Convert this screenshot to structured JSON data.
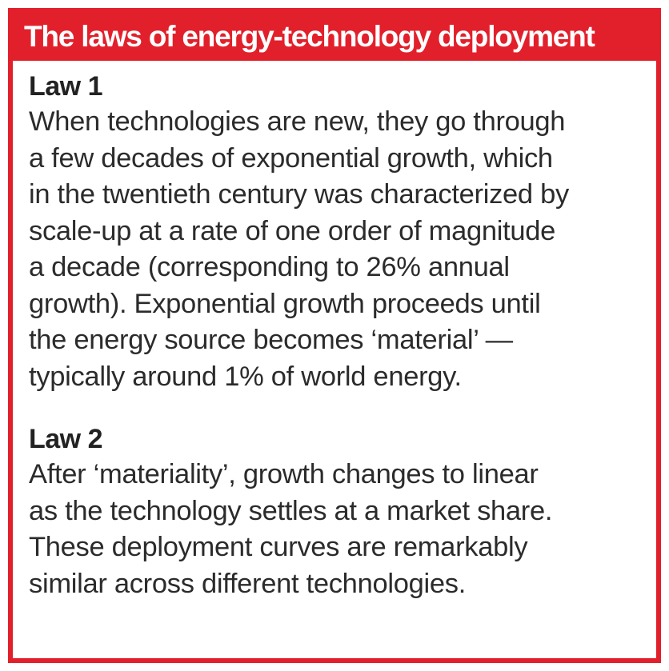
{
  "header": {
    "title": "The laws of energy-technology deployment"
  },
  "laws": [
    {
      "heading": "Law 1",
      "lines": [
        "When technologies are new, they go through",
        "a few decades of exponential growth, which",
        "in the twentieth century was characterized by",
        "scale-up at a rate of one order of magnitude",
        "a decade (corresponding to 26% annual",
        "growth). Exponential growth proceeds until",
        "the energy source becomes ‘material’ —",
        "typically around 1% of world energy."
      ]
    },
    {
      "heading": "Law 2",
      "lines": [
        "After ‘materiality’, growth changes to linear",
        "as the technology settles at a market share.",
        "These deployment curves are remarkably",
        "similar across different technologies."
      ]
    }
  ],
  "colors": {
    "accent": "#e2202b",
    "text": "#2b2b2b",
    "background": "#ffffff"
  }
}
